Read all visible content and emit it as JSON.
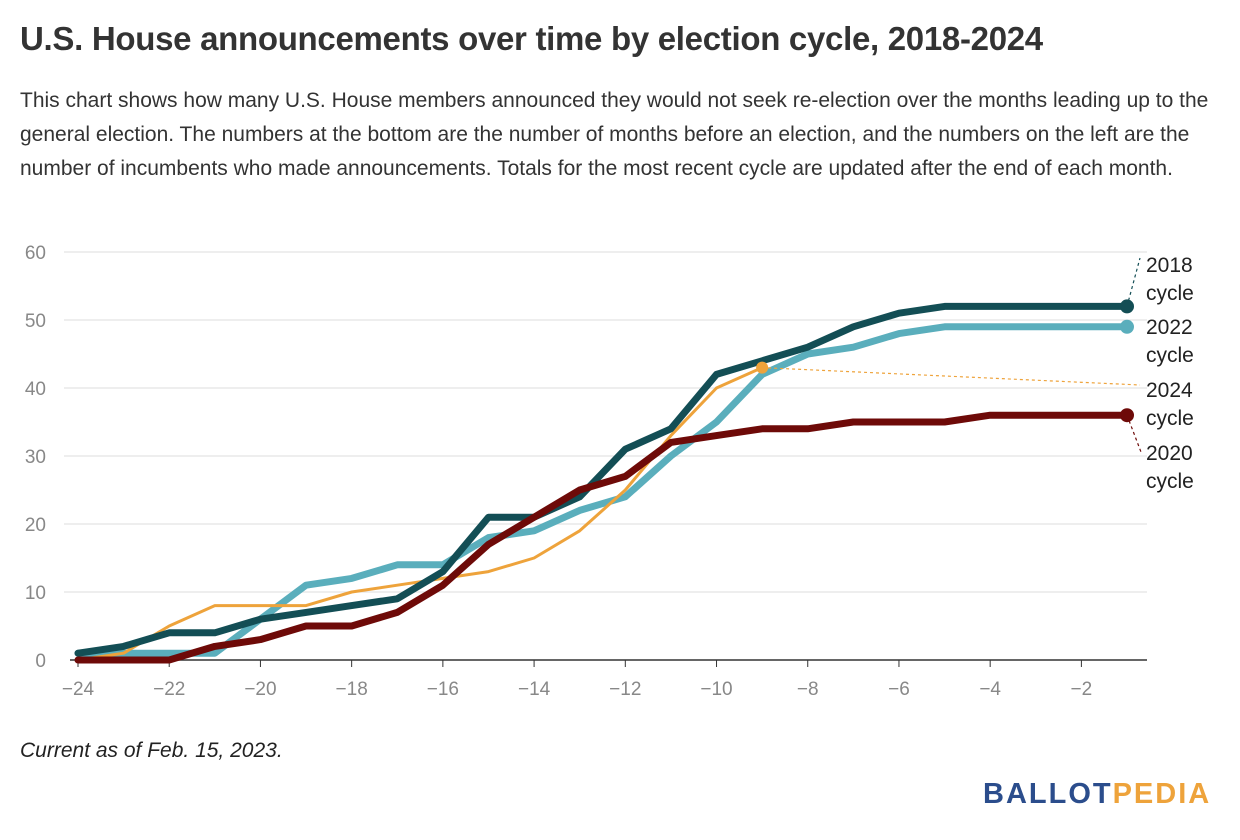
{
  "header": {
    "title": "U.S. House announcements over time by election cycle, 2018-2024",
    "subtitle": "This chart shows how many U.S. House members announced they would not seek re-election over the months leading up to the general election. The numbers at the bottom are the number of months before an election, and the numbers on the left are the number of incumbents who made announcements. Totals for the most recent cycle are updated after the end of each month."
  },
  "footer": {
    "note": "Current as of Feb. 15, 2023.",
    "logo_part1": "BALLOT",
    "logo_part2": "PEDIA"
  },
  "colors": {
    "2018": "#134e55",
    "2020": "#6e0a08",
    "2022": "#5aaebc",
    "2024": "#eea33b",
    "grid": "#e3e3e3",
    "axis": "#333333"
  },
  "chart_data": {
    "type": "line",
    "title": "",
    "xlabel": "",
    "ylabel": "",
    "xlim": [
      -24,
      -1
    ],
    "ylim": [
      0,
      60
    ],
    "x_ticks": [
      -24,
      -22,
      -20,
      -18,
      -16,
      -14,
      -12,
      -10,
      -8,
      -6,
      -4,
      -2
    ],
    "x_tick_labels": [
      "−24",
      "−22",
      "−20",
      "−18",
      "−16",
      "−14",
      "−12",
      "−10",
      "−8",
      "−6",
      "−4",
      "−2"
    ],
    "y_ticks": [
      0,
      10,
      20,
      30,
      40,
      50,
      60
    ],
    "y_tick_labels": [
      "0",
      "10",
      "20",
      "30",
      "40",
      "50",
      "60"
    ],
    "grid": true,
    "series": [
      {
        "name": "2018 cycle",
        "key": "2018",
        "label_line1": "2018",
        "label_line2": "cycle",
        "x": [
          -24,
          -23,
          -22,
          -21,
          -20,
          -19,
          -18,
          -17,
          -16,
          -15,
          -14,
          -13,
          -12,
          -11,
          -10,
          -9,
          -8,
          -7,
          -6,
          -5,
          -4,
          -3,
          -2,
          -1
        ],
        "values": [
          1,
          2,
          4,
          4,
          6,
          7,
          8,
          9,
          13,
          21,
          21,
          24,
          31,
          34,
          42,
          44,
          46,
          49,
          51,
          52,
          52,
          52,
          52,
          52
        ]
      },
      {
        "name": "2022 cycle",
        "key": "2022",
        "label_line1": "2022",
        "label_line2": "cycle",
        "x": [
          -24,
          -23,
          -22,
          -21,
          -20,
          -19,
          -18,
          -17,
          -16,
          -15,
          -14,
          -13,
          -12,
          -11,
          -10,
          -9,
          -8,
          -7,
          -6,
          -5,
          -4,
          -3,
          -2,
          -1
        ],
        "values": [
          1,
          1,
          1,
          1,
          6,
          11,
          12,
          14,
          14,
          18,
          19,
          22,
          24,
          30,
          35,
          42,
          45,
          46,
          48,
          49,
          49,
          49,
          49,
          49
        ]
      },
      {
        "name": "2024 cycle",
        "key": "2024",
        "label_line1": "2024",
        "label_line2": "cycle",
        "x": [
          -24,
          -23,
          -22,
          -21,
          -20,
          -19,
          -18,
          -17,
          -16,
          -15,
          -14,
          -13,
          -12,
          -11,
          -10,
          -9
        ],
        "values": [
          0,
          1,
          5,
          8,
          8,
          8,
          10,
          11,
          12,
          13,
          15,
          19,
          25,
          33,
          40,
          43
        ]
      },
      {
        "name": "2020 cycle",
        "key": "2020",
        "label_line1": "2020",
        "label_line2": "cycle",
        "x": [
          -24,
          -23,
          -22,
          -21,
          -20,
          -19,
          -18,
          -17,
          -16,
          -15,
          -14,
          -13,
          -12,
          -11,
          -10,
          -9,
          -8,
          -7,
          -6,
          -5,
          -4,
          -3,
          -2,
          -1
        ],
        "values": [
          0,
          0,
          0,
          2,
          3,
          5,
          5,
          7,
          11,
          17,
          21,
          25,
          27,
          32,
          33,
          34,
          34,
          35,
          35,
          35,
          36,
          36,
          36,
          36
        ]
      }
    ]
  }
}
